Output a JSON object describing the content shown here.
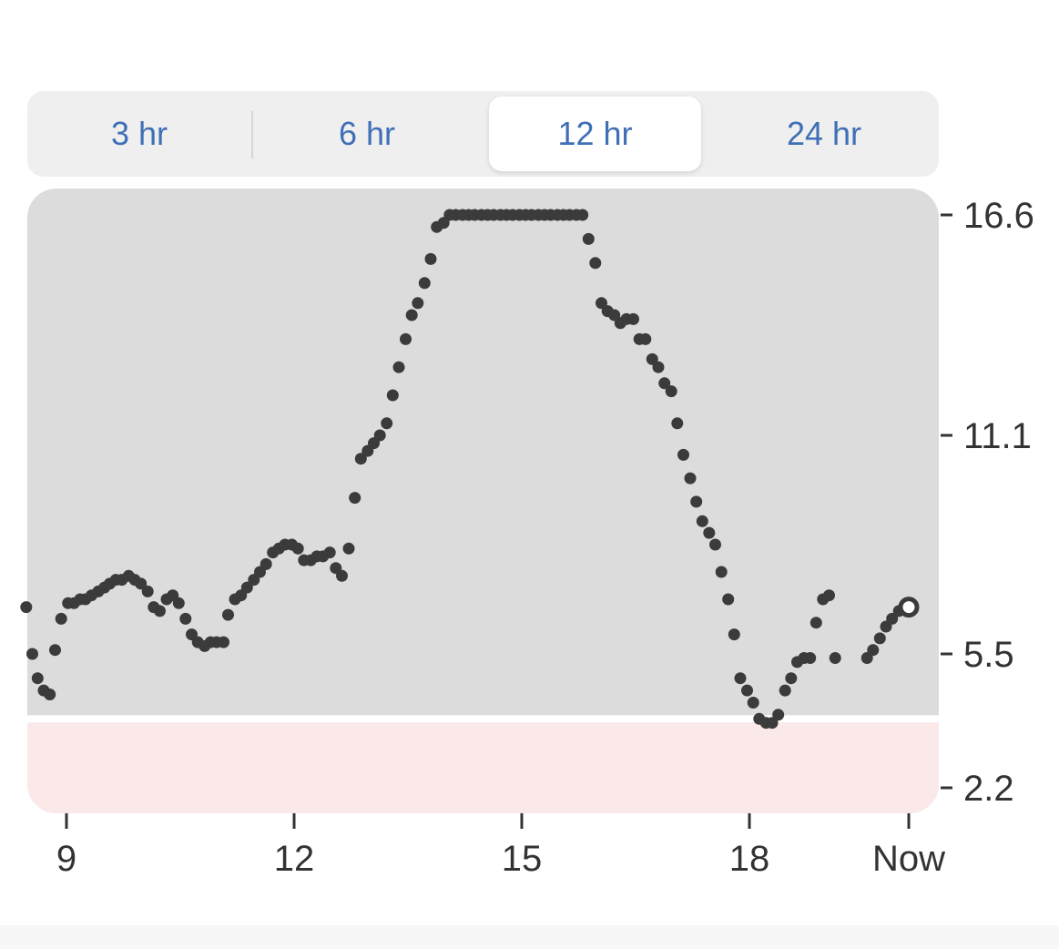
{
  "range_selector": {
    "options": [
      {
        "label": "3 hr",
        "selected": false
      },
      {
        "label": "6 hr",
        "selected": false
      },
      {
        "label": "12 hr",
        "selected": true
      },
      {
        "label": "24 hr",
        "selected": false
      }
    ]
  },
  "colors": {
    "accent": "#3f6fb6",
    "plot_bg": "#dcdcdc",
    "low_zone": "#fbe9ea",
    "points": "#3b3b3b"
  },
  "chart_data": {
    "type": "scatter",
    "x_unit": "hour",
    "y_ticks": [
      {
        "value": 16.6,
        "label": "16.6"
      },
      {
        "value": 11.1,
        "label": "11.1"
      },
      {
        "value": 5.5,
        "label": "5.5"
      },
      {
        "value": 2.2,
        "label": "2.2"
      }
    ],
    "x_ticks": [
      {
        "value": 9,
        "label": "9"
      },
      {
        "value": 12,
        "label": "12"
      },
      {
        "value": 15,
        "label": "15"
      },
      {
        "value": 18,
        "label": "18"
      },
      {
        "value": 20.1,
        "label": "Now"
      }
    ],
    "low_threshold": 3.9,
    "ylim": [
      2.2,
      16.6
    ],
    "xlim": [
      8.5,
      20.1
    ],
    "current": {
      "x": 20.1,
      "y": 6.7
    },
    "points": [
      [
        8.47,
        6.7
      ],
      [
        8.55,
        5.5
      ],
      [
        8.62,
        4.9
      ],
      [
        8.7,
        4.6
      ],
      [
        8.78,
        4.5
      ],
      [
        8.85,
        5.6
      ],
      [
        8.93,
        6.4
      ],
      [
        9.02,
        6.8
      ],
      [
        9.1,
        6.8
      ],
      [
        9.18,
        6.9
      ],
      [
        9.25,
        6.9
      ],
      [
        9.33,
        7.0
      ],
      [
        9.42,
        7.1
      ],
      [
        9.5,
        7.2
      ],
      [
        9.57,
        7.3
      ],
      [
        9.65,
        7.4
      ],
      [
        9.73,
        7.4
      ],
      [
        9.82,
        7.5
      ],
      [
        9.9,
        7.4
      ],
      [
        9.98,
        7.3
      ],
      [
        10.07,
        7.1
      ],
      [
        10.15,
        6.7
      ],
      [
        10.23,
        6.6
      ],
      [
        10.32,
        6.9
      ],
      [
        10.4,
        7.0
      ],
      [
        10.48,
        6.8
      ],
      [
        10.57,
        6.4
      ],
      [
        10.65,
        6.0
      ],
      [
        10.73,
        5.8
      ],
      [
        10.82,
        5.7
      ],
      [
        10.9,
        5.8
      ],
      [
        10.98,
        5.8
      ],
      [
        11.07,
        5.8
      ],
      [
        11.13,
        6.5
      ],
      [
        11.22,
        6.9
      ],
      [
        11.3,
        7.0
      ],
      [
        11.38,
        7.2
      ],
      [
        11.47,
        7.4
      ],
      [
        11.55,
        7.6
      ],
      [
        11.63,
        7.8
      ],
      [
        11.72,
        8.1
      ],
      [
        11.8,
        8.2
      ],
      [
        11.88,
        8.3
      ],
      [
        11.97,
        8.3
      ],
      [
        12.05,
        8.2
      ],
      [
        12.13,
        7.9
      ],
      [
        12.22,
        7.9
      ],
      [
        12.3,
        8.0
      ],
      [
        12.38,
        8.0
      ],
      [
        12.47,
        8.1
      ],
      [
        12.55,
        7.7
      ],
      [
        12.63,
        7.5
      ],
      [
        12.72,
        8.2
      ],
      [
        12.8,
        9.5
      ],
      [
        12.88,
        10.5
      ],
      [
        12.97,
        10.7
      ],
      [
        13.05,
        10.9
      ],
      [
        13.13,
        11.1
      ],
      [
        13.22,
        11.4
      ],
      [
        13.3,
        12.1
      ],
      [
        13.38,
        12.8
      ],
      [
        13.47,
        13.5
      ],
      [
        13.55,
        14.1
      ],
      [
        13.63,
        14.4
      ],
      [
        13.72,
        14.9
      ],
      [
        13.8,
        15.5
      ],
      [
        13.88,
        16.3
      ],
      [
        13.97,
        16.4
      ],
      [
        14.05,
        16.6
      ],
      [
        14.13,
        16.6
      ],
      [
        14.22,
        16.6
      ],
      [
        14.3,
        16.6
      ],
      [
        14.38,
        16.6
      ],
      [
        14.47,
        16.6
      ],
      [
        14.55,
        16.6
      ],
      [
        14.63,
        16.6
      ],
      [
        14.72,
        16.6
      ],
      [
        14.8,
        16.6
      ],
      [
        14.88,
        16.6
      ],
      [
        14.97,
        16.6
      ],
      [
        15.05,
        16.6
      ],
      [
        15.13,
        16.6
      ],
      [
        15.22,
        16.6
      ],
      [
        15.3,
        16.6
      ],
      [
        15.38,
        16.6
      ],
      [
        15.47,
        16.6
      ],
      [
        15.55,
        16.6
      ],
      [
        15.63,
        16.6
      ],
      [
        15.72,
        16.6
      ],
      [
        15.8,
        16.6
      ],
      [
        15.88,
        16.0
      ],
      [
        15.97,
        15.4
      ],
      [
        16.05,
        14.4
      ],
      [
        16.13,
        14.2
      ],
      [
        16.22,
        14.1
      ],
      [
        16.3,
        13.9
      ],
      [
        16.38,
        14.0
      ],
      [
        16.47,
        14.0
      ],
      [
        16.55,
        13.5
      ],
      [
        16.63,
        13.5
      ],
      [
        16.72,
        13.0
      ],
      [
        16.8,
        12.8
      ],
      [
        16.88,
        12.4
      ],
      [
        16.97,
        12.2
      ],
      [
        17.05,
        11.4
      ],
      [
        17.13,
        10.6
      ],
      [
        17.22,
        10.0
      ],
      [
        17.3,
        9.4
      ],
      [
        17.38,
        8.9
      ],
      [
        17.47,
        8.6
      ],
      [
        17.55,
        8.3
      ],
      [
        17.63,
        7.6
      ],
      [
        17.72,
        6.9
      ],
      [
        17.8,
        6.0
      ],
      [
        17.88,
        4.9
      ],
      [
        17.97,
        4.6
      ],
      [
        18.05,
        4.3
      ],
      [
        18.13,
        3.9
      ],
      [
        18.22,
        3.8
      ],
      [
        18.3,
        3.8
      ],
      [
        18.38,
        4.0
      ],
      [
        18.47,
        4.6
      ],
      [
        18.55,
        4.9
      ],
      [
        18.63,
        5.3
      ],
      [
        18.72,
        5.4
      ],
      [
        18.8,
        5.4
      ],
      [
        18.88,
        6.3
      ],
      [
        18.97,
        6.9
      ],
      [
        19.05,
        7.0
      ],
      [
        19.13,
        5.4
      ],
      [
        19.55,
        5.4
      ],
      [
        19.63,
        5.6
      ],
      [
        19.72,
        5.9
      ],
      [
        19.8,
        6.2
      ],
      [
        19.88,
        6.4
      ],
      [
        19.97,
        6.6
      ]
    ]
  }
}
